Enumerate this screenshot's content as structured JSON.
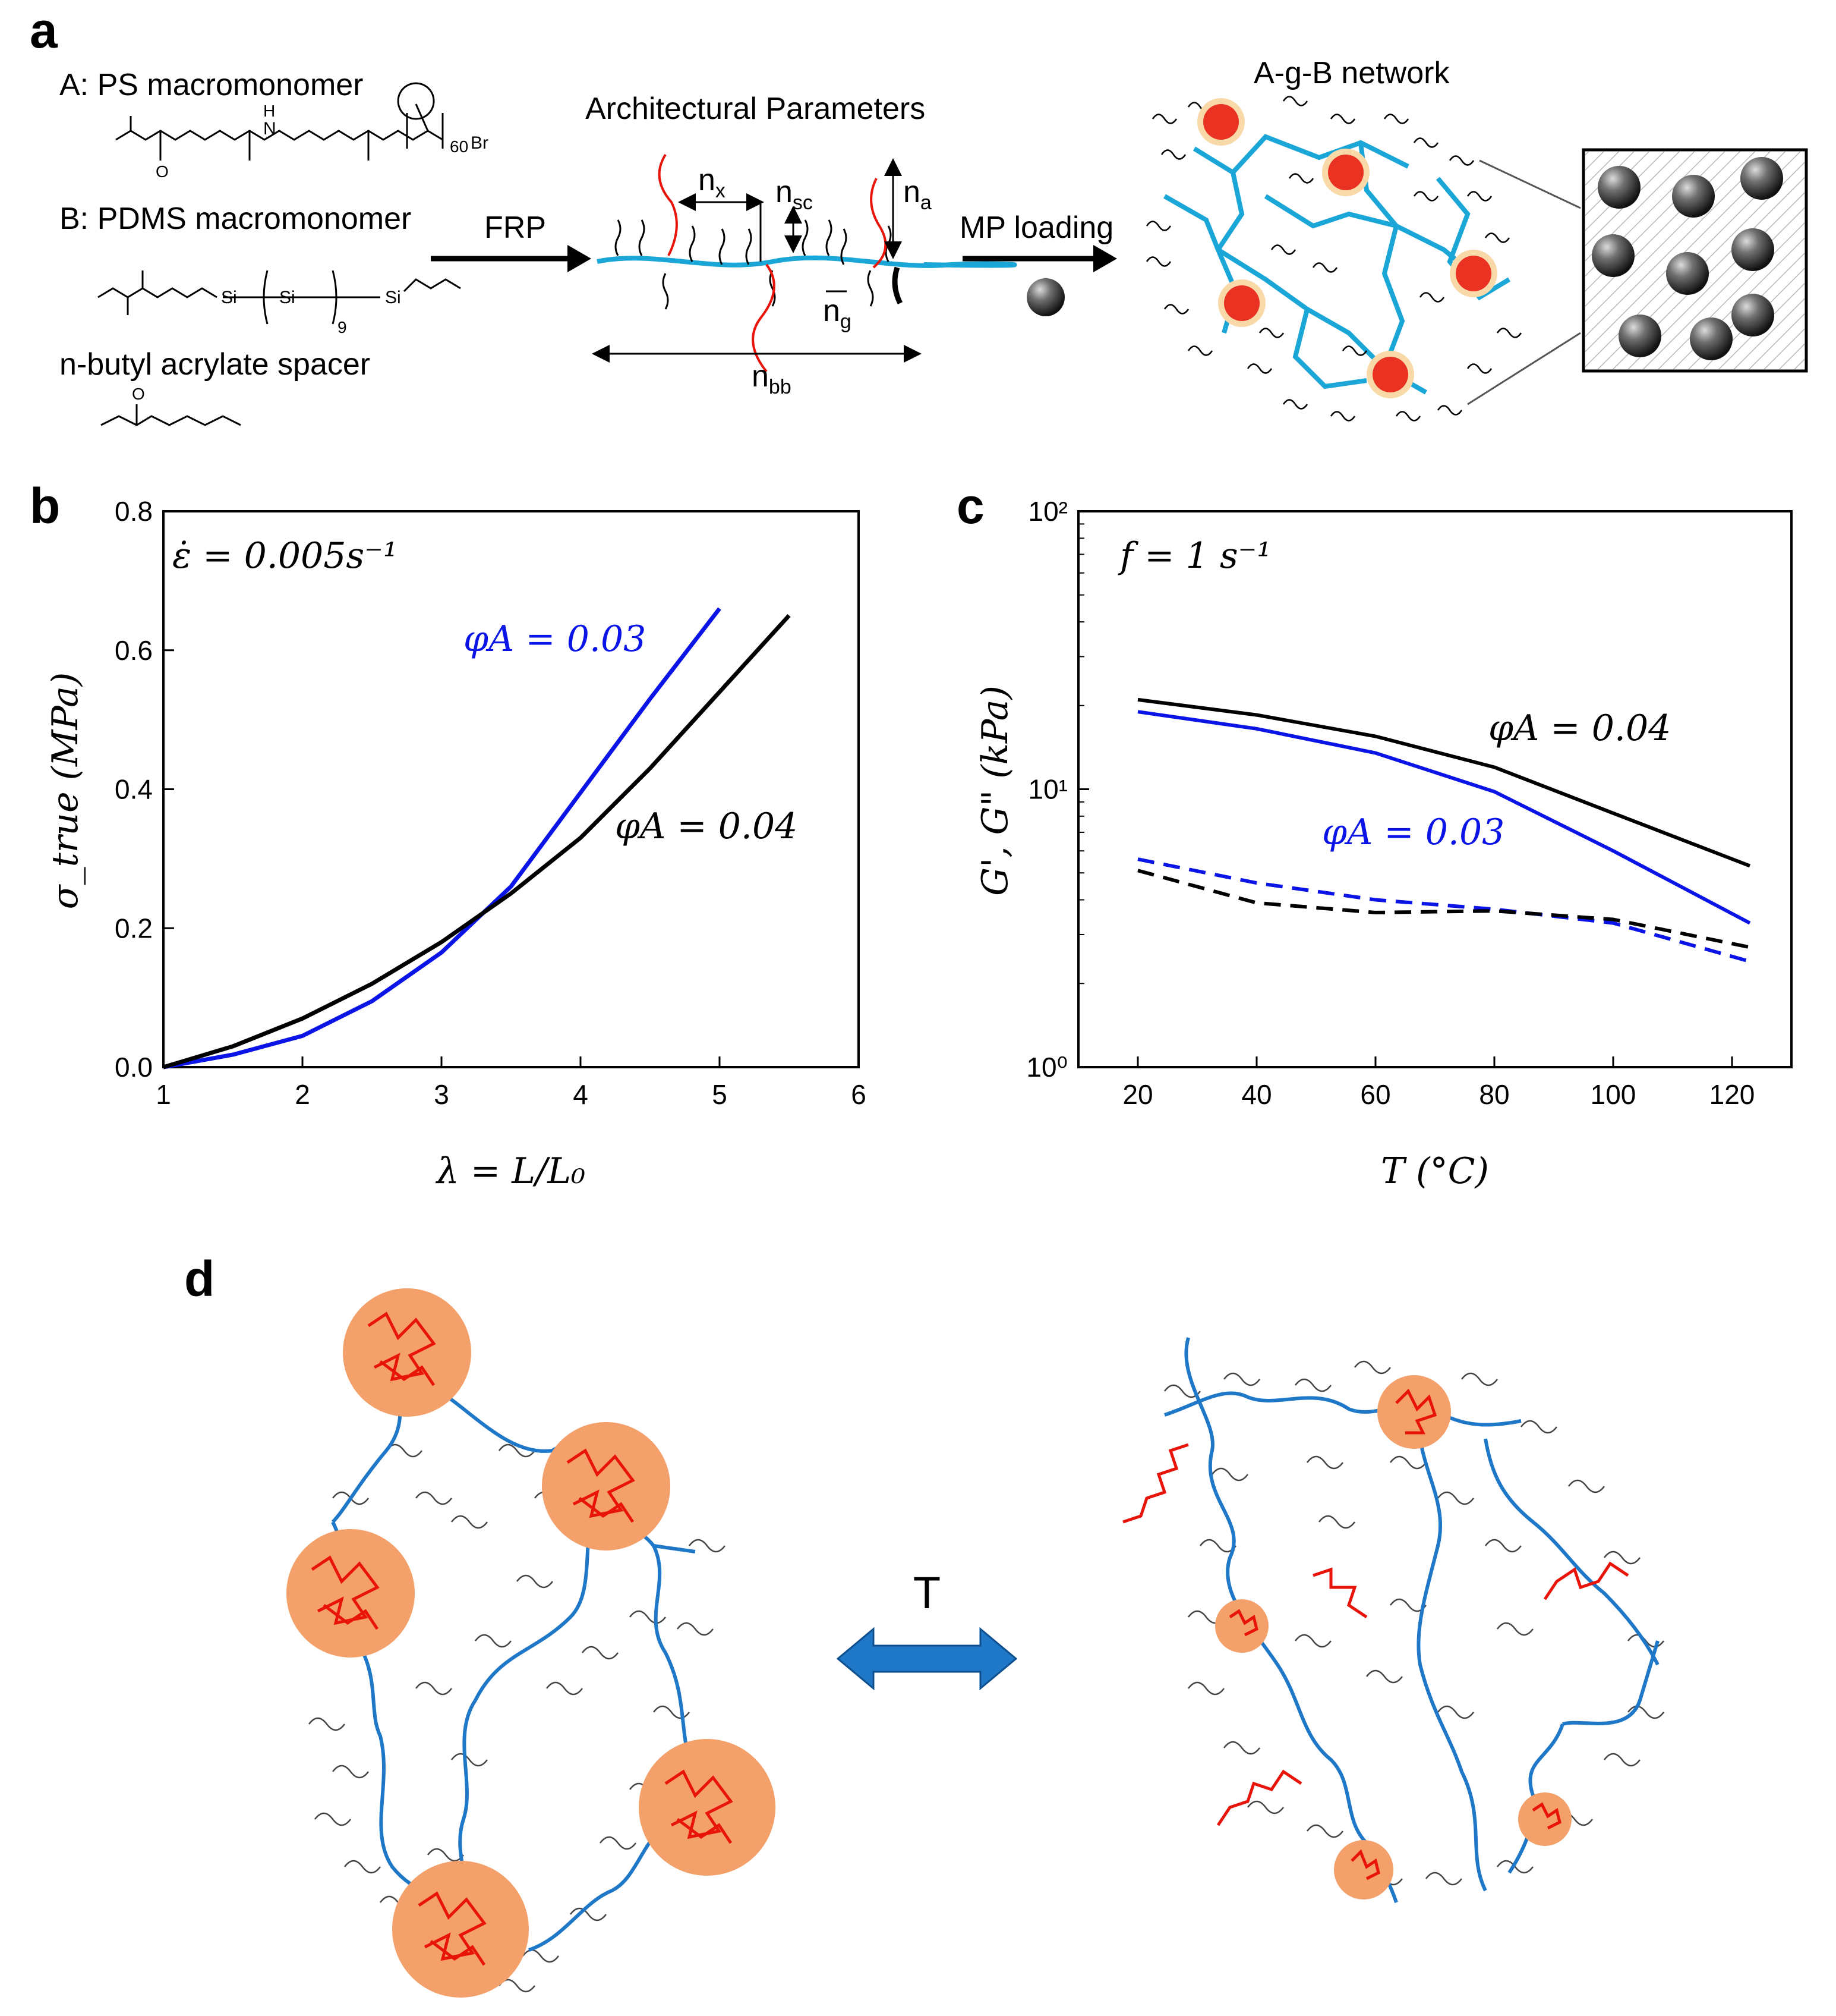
{
  "panel_a": {
    "letter": "a",
    "macromonomer_a": "A: PS macromonomer",
    "macromonomer_a_subscript": "60",
    "macromonomer_a_end": "Br",
    "macromonomer_b": "B: PDMS macromonomer",
    "macromonomer_b_repeat": "9",
    "spacer": "n-butyl acrylate spacer",
    "atom_o": "O",
    "atom_h": "H",
    "atom_n": "N",
    "atom_si": "Si",
    "arrow_frp": "FRP",
    "title_params": "Architectural Parameters",
    "param_nx": "n",
    "param_nx_sub": "x",
    "param_nsc": "n",
    "param_nsc_sub": "sc",
    "param_na": "n",
    "param_na_sub": "a",
    "param_ng": "n",
    "param_ng_sub": "g",
    "param_nbb": "n",
    "param_nbb_sub": "bb",
    "arrow_mp": "MP loading",
    "network_title": "A-g-B network"
  },
  "panel_b": {
    "letter": "b",
    "annotation": "ε̇ = 0.005s⁻¹"
  },
  "panel_c": {
    "letter": "c",
    "annotation": "f = 1 s⁻¹"
  },
  "panel_d": {
    "letter": "d",
    "arrow_label": "T"
  },
  "colors": {
    "blue": "#0a14e6",
    "black": "#000000",
    "chain_blue": "#1f77c8",
    "ps_red": "#e8140a",
    "domain_orange": "#f4a06a",
    "backbone_cyan": "#1aa6d6"
  },
  "chart_data": [
    {
      "type": "line",
      "panel": "b",
      "xlabel": "λ = L/L₀",
      "ylabel": "σ_true (MPa)",
      "xlim": [
        1,
        6
      ],
      "ylim": [
        0,
        0.8
      ],
      "xticks": [
        "1",
        "2",
        "3",
        "4",
        "5",
        "6"
      ],
      "yticks": [
        "0.0",
        "0.2",
        "0.4",
        "0.6",
        "0.8"
      ],
      "series": [
        {
          "name": "φ_A = 0.03",
          "label": "φA = 0.03",
          "color": "#0a14e6",
          "x": [
            1.0,
            1.5,
            2.0,
            2.5,
            3.0,
            3.5,
            4.0,
            4.5,
            5.0
          ],
          "y": [
            0.0,
            0.018,
            0.045,
            0.095,
            0.165,
            0.26,
            0.395,
            0.53,
            0.66
          ]
        },
        {
          "name": "φ_A = 0.04",
          "label": "φA = 0.04",
          "color": "#000000",
          "x": [
            1.0,
            1.5,
            2.0,
            2.5,
            3.0,
            3.5,
            4.0,
            4.5,
            5.0,
            5.5
          ],
          "y": [
            0.0,
            0.03,
            0.07,
            0.12,
            0.18,
            0.25,
            0.33,
            0.43,
            0.54,
            0.65
          ]
        }
      ]
    },
    {
      "type": "line",
      "panel": "c",
      "yscale": "log",
      "xlabel": "T (°C)",
      "ylabel": "G', G\" (kPa)",
      "xlim": [
        10,
        130
      ],
      "ylim": [
        1,
        100
      ],
      "xticks": [
        "20",
        "40",
        "60",
        "80",
        "100",
        "120"
      ],
      "yticks": [
        "10⁰",
        "10¹",
        "10²"
      ],
      "series": [
        {
          "name": "G' φ_A = 0.04",
          "label": "φA = 0.04",
          "color": "#000000",
          "dash": false,
          "x": [
            20,
            40,
            60,
            80,
            100,
            123
          ],
          "y": [
            21,
            18.5,
            15.5,
            12,
            8.2,
            5.3
          ]
        },
        {
          "name": "G' φ_A = 0.03",
          "label": "φA = 0.03",
          "color": "#0a14e6",
          "dash": false,
          "x": [
            20,
            40,
            60,
            80,
            100,
            123
          ],
          "y": [
            19,
            16.5,
            13.5,
            9.8,
            6.0,
            3.3
          ]
        },
        {
          "name": "G\" φ_A = 0.03",
          "color": "#0a14e6",
          "dash": true,
          "x": [
            20,
            40,
            60,
            80,
            100,
            123
          ],
          "y": [
            5.6,
            4.6,
            4.0,
            3.7,
            3.3,
            2.4
          ]
        },
        {
          "name": "G\" φ_A = 0.04",
          "color": "#000000",
          "dash": true,
          "x": [
            20,
            40,
            60,
            80,
            100,
            123
          ],
          "y": [
            5.1,
            3.9,
            3.6,
            3.65,
            3.4,
            2.7
          ]
        }
      ]
    }
  ]
}
